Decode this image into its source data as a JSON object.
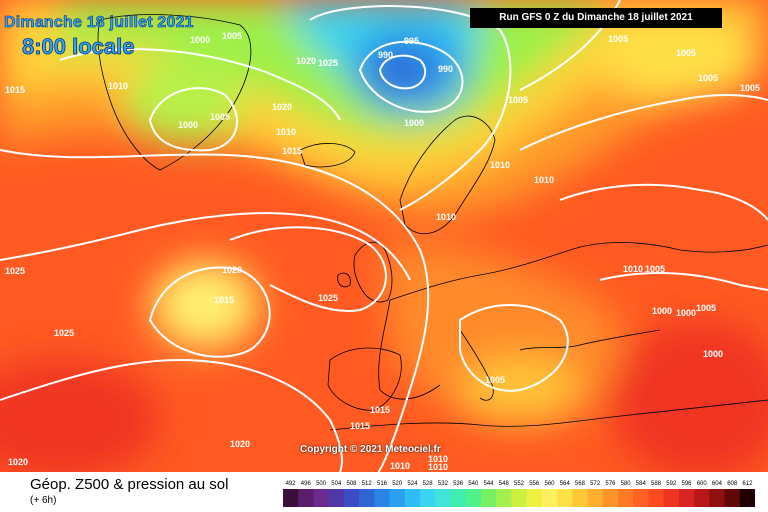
{
  "header": {
    "date_text": "Dimanche 18 juillet 2021",
    "time_text": "8:00 locale",
    "run_text": "Run GFS 0 Z du Dimanche 18 juillet 2021"
  },
  "copyright": "Copyright © 2021 Meteociel.fr",
  "legend": {
    "title": "Géop. Z500 & pression au sol",
    "subtitle": "(+ 6h)",
    "scale_values": [
      "492",
      "496",
      "500",
      "504",
      "508",
      "512",
      "516",
      "520",
      "524",
      "528",
      "532",
      "536",
      "540",
      "544",
      "548",
      "552",
      "556",
      "560",
      "564",
      "568",
      "572",
      "576",
      "580",
      "584",
      "588",
      "592",
      "596",
      "600",
      "604",
      "608",
      "612"
    ],
    "scale_colors": [
      "#3a0f3a",
      "#5b1e6b",
      "#6a2a8e",
      "#5038a8",
      "#3c4cc4",
      "#2f66d6",
      "#2a84e6",
      "#2aa0f0",
      "#30bcf4",
      "#38d4f0",
      "#40e4d8",
      "#40ecb0",
      "#50f08a",
      "#78f066",
      "#a4f050",
      "#ccf040",
      "#ecf040",
      "#fff060",
      "#ffe046",
      "#ffc838",
      "#ffae30",
      "#ff942a",
      "#ff7a26",
      "#ff6224",
      "#ff4a22",
      "#f03422",
      "#d82422",
      "#b81818",
      "#901010",
      "#600808",
      "#200000"
    ]
  },
  "isobars": [
    {
      "value": "1000",
      "kind": "pressure"
    },
    {
      "value": "1005",
      "kind": "pressure"
    },
    {
      "value": "1010",
      "kind": "pressure"
    },
    {
      "value": "1015",
      "kind": "pressure"
    },
    {
      "value": "1020",
      "kind": "pressure"
    },
    {
      "value": "1025",
      "kind": "pressure"
    },
    {
      "value": "990",
      "kind": "pressure"
    },
    {
      "value": "995",
      "kind": "pressure"
    }
  ],
  "colors": {
    "isobar": "#ffffff",
    "coast": "#000000"
  }
}
